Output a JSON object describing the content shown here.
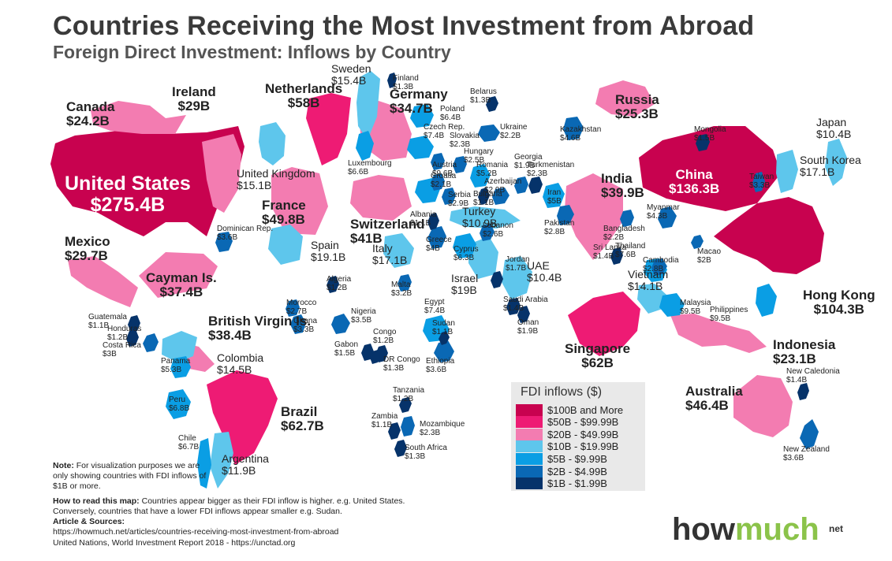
{
  "title": "Countries Receiving the Most Investment from Abroad",
  "subtitle": "Foreign Direct Investment: Inflows by Country",
  "colors": {
    "tier100": "#c8024f",
    "tier50": "#ee1b74",
    "tier20": "#f37cb1",
    "tier10": "#5ec6ec",
    "tier5": "#0a9ee4",
    "tier2": "#0a68b4",
    "tier1": "#06336a"
  },
  "legend": {
    "title": "FDI inflows ($)",
    "items": [
      {
        "label": "$100B and More",
        "color": "#c8024f"
      },
      {
        "label": "$50B - $99.99B",
        "color": "#ee1b74"
      },
      {
        "label": "$20B - $49.99B",
        "color": "#f37cb1"
      },
      {
        "label": "$10B - $19.99B",
        "color": "#5ec6ec"
      },
      {
        "label": "$5B - $9.99B",
        "color": "#0a9ee4"
      },
      {
        "label": "$2B - $4.99B",
        "color": "#0a68b4"
      },
      {
        "label": "$1B - $1.99B",
        "color": "#06336a"
      }
    ]
  },
  "countries": [
    {
      "key": "us",
      "name": "United States",
      "value": "$275.4B"
    },
    {
      "key": "china",
      "name": "China",
      "value": "$136.3B"
    },
    {
      "key": "hk",
      "name": "Hong Kong",
      "value": "$104.3B"
    },
    {
      "key": "brazil",
      "name": "Brazil",
      "value": "$62.7B"
    },
    {
      "key": "singapore",
      "name": "Singapore",
      "value": "$62B"
    },
    {
      "key": "netherlands",
      "name": "Netherlands",
      "value": "$58B"
    },
    {
      "key": "france",
      "name": "France",
      "value": "$49.8B"
    },
    {
      "key": "australia",
      "name": "Australia",
      "value": "$46.4B"
    },
    {
      "key": "switzerland",
      "name": "Switzerland",
      "value": "$41B"
    },
    {
      "key": "india",
      "name": "India",
      "value": "$39.9B"
    },
    {
      "key": "bvi",
      "name": "British Virgin Is.",
      "value": "$38.4B"
    },
    {
      "key": "cayman",
      "name": "Cayman Is.",
      "value": "$37.4B"
    },
    {
      "key": "germany",
      "name": "Germany",
      "value": "$34.7B"
    },
    {
      "key": "mexico",
      "name": "Mexico",
      "value": "$29.7B"
    },
    {
      "key": "ireland",
      "name": "Ireland",
      "value": "$29B"
    },
    {
      "key": "russia",
      "name": "Russia",
      "value": "$25.3B"
    },
    {
      "key": "canada",
      "name": "Canada",
      "value": "$24.2B"
    },
    {
      "key": "indonesia",
      "name": "Indonesia",
      "value": "$23.1B"
    },
    {
      "key": "spain",
      "name": "Spain",
      "value": "$19.1B"
    },
    {
      "key": "israel",
      "name": "Israel",
      "value": "$19B"
    },
    {
      "key": "italy",
      "name": "Italy",
      "value": "$17.1B"
    },
    {
      "key": "skorea",
      "name": "South Korea",
      "value": "$17.1B"
    },
    {
      "key": "sweden",
      "name": "Sweden",
      "value": "$15.4B"
    },
    {
      "key": "uk",
      "name": "United Kingdom",
      "value": "$15.1B"
    },
    {
      "key": "colombia",
      "name": "Colombia",
      "value": "$14.5B"
    },
    {
      "key": "vietnam",
      "name": "Vietnam",
      "value": "$14.1B"
    },
    {
      "key": "argentina",
      "name": "Argentina",
      "value": "$11.9B"
    },
    {
      "key": "turkey",
      "name": "Turkey",
      "value": "$10.9B"
    },
    {
      "key": "uae",
      "name": "UAE",
      "value": "$10.4B"
    },
    {
      "key": "japan",
      "name": "Japan",
      "value": "$10.4B"
    },
    {
      "key": "austria",
      "name": "Austria",
      "value": "$9.6B"
    },
    {
      "key": "malaysia",
      "name": "Malaysia",
      "value": "$9.5B"
    },
    {
      "key": "philippines",
      "name": "Philippines",
      "value": "$9.5B"
    },
    {
      "key": "egypt",
      "name": "Egypt",
      "value": "$7.4B"
    },
    {
      "key": "czech",
      "name": "Czech Rep.",
      "value": "$7.4B"
    },
    {
      "key": "thailand",
      "name": "Thailand",
      "value": "$7.6B"
    },
    {
      "key": "chile",
      "name": "Chile",
      "value": "$6.7B"
    },
    {
      "key": "peru",
      "name": "Peru",
      "value": "$6.8B"
    },
    {
      "key": "luxembourg",
      "name": "Luxembourg",
      "value": "$6.6B"
    },
    {
      "key": "poland",
      "name": "Poland",
      "value": "$6.4B"
    },
    {
      "key": "cyprus",
      "name": "Cyprus",
      "value": "$6.3B"
    },
    {
      "key": "panama",
      "name": "Panama",
      "value": "$5.3B"
    },
    {
      "key": "romania",
      "name": "Romania",
      "value": "$5.2B"
    },
    {
      "key": "iran",
      "name": "Iran",
      "value": "$5B"
    },
    {
      "key": "kazakhstan",
      "name": "Kazakhstan",
      "value": "$4.6B"
    },
    {
      "key": "myanmar",
      "name": "Myanmar",
      "value": "$4.3B"
    },
    {
      "key": "greece",
      "name": "Greece",
      "value": "$4B"
    },
    {
      "key": "dominican",
      "name": "Dominican Rep.",
      "value": "$3.6B"
    },
    {
      "key": "ethiopia",
      "name": "Ethiopia",
      "value": "$3.6B"
    },
    {
      "key": "newzealand",
      "name": "New Zealand",
      "value": "$3.6B"
    },
    {
      "key": "nigeria",
      "name": "Nigeria",
      "value": "$3.5B"
    },
    {
      "key": "taiwan",
      "name": "Taiwan",
      "value": "$3.3B"
    },
    {
      "key": "ghana",
      "name": "Ghana",
      "value": "$3.3B"
    },
    {
      "key": "malta",
      "name": "Malta",
      "value": "$3.2B"
    },
    {
      "key": "costarica",
      "name": "Costa Rica",
      "value": "$3B"
    },
    {
      "key": "azerbaijan",
      "name": "Azerbaijan",
      "value": "$2.9B"
    },
    {
      "key": "serbia",
      "name": "Serbia",
      "value": "$2.9B"
    },
    {
      "key": "pakistan",
      "name": "Pakistan",
      "value": "$2.8B"
    },
    {
      "key": "cambodia",
      "name": "Cambodia",
      "value": "$2.8B"
    },
    {
      "key": "morocco",
      "name": "Morocco",
      "value": "$2.7B"
    },
    {
      "key": "lebanon",
      "name": "Lebanon",
      "value": "$2.6B"
    },
    {
      "key": "hungary",
      "name": "Hungary",
      "value": "$2.5B"
    },
    {
      "key": "slovakia",
      "name": "Slovakia",
      "value": "$2.3B"
    },
    {
      "key": "turkmenistan",
      "name": "Turkmenistan",
      "value": "$2.3B"
    },
    {
      "key": "mozambique",
      "name": "Mozambique",
      "value": "$2.3B"
    },
    {
      "key": "ukraine",
      "name": "Ukraine",
      "value": "$2.2B"
    },
    {
      "key": "bangladesh",
      "name": "Bangladesh",
      "value": "$2.2B"
    },
    {
      "key": "croatia",
      "name": "Croatia",
      "value": "$2.1B"
    },
    {
      "key": "macao",
      "name": "Macao",
      "value": "$2B"
    },
    {
      "key": "oman",
      "name": "Oman",
      "value": "$1.9B"
    },
    {
      "key": "georgia",
      "name": "Georgia",
      "value": "$1.9B"
    },
    {
      "key": "jordan",
      "name": "Jordan",
      "value": "$1.7B"
    },
    {
      "key": "gabon",
      "name": "Gabon",
      "value": "$1.5B"
    },
    {
      "key": "mongolia",
      "name": "Mongolia",
      "value": "$1.5B"
    },
    {
      "key": "saudi",
      "name": "Saudi Arabia",
      "value": "$1.4B"
    },
    {
      "key": "srilanka",
      "name": "Sri Lanka",
      "value": "$1.4B"
    },
    {
      "key": "newcaledonia",
      "name": "New Caledonia",
      "value": "$1.4B"
    },
    {
      "key": "finland",
      "name": "Finland",
      "value": "$1.3B"
    },
    {
      "key": "belarus",
      "name": "Belarus",
      "value": "$1.3B"
    },
    {
      "key": "drcongo",
      "name": "DR Congo",
      "value": "$1.3B"
    },
    {
      "key": "southafrica",
      "name": "South Africa",
      "value": "$1.3B"
    },
    {
      "key": "algeria",
      "name": "Algeria",
      "value": "$1.2B"
    },
    {
      "key": "honduras",
      "name": "Honduras",
      "value": "$1.2B"
    },
    {
      "key": "congo",
      "name": "Congo",
      "value": "$1.2B"
    },
    {
      "key": "tanzania",
      "name": "Tanzania",
      "value": "$1.2B"
    },
    {
      "key": "guatemala",
      "name": "Guatemala",
      "value": "$1.1B"
    },
    {
      "key": "albania",
      "name": "Albania",
      "value": "$1.1B"
    },
    {
      "key": "bulgaria",
      "name": "Bulgaria",
      "value": "$1.1B"
    },
    {
      "key": "sudan",
      "name": "Sudan",
      "value": "$1.1B"
    },
    {
      "key": "zambia",
      "name": "Zambia",
      "value": "$1.1B"
    }
  ],
  "note": {
    "heading": "Note:",
    "text": " For visualization purposes we are only showing countries with FDI inflows of $1B or more."
  },
  "howto": {
    "heading": "How to read this map:",
    "text": " Countries appear bigger as their FDI inflow is higher. e.g. United States. Conversely, countries that have a lower FDI inflows appear smaller e.g. Sudan."
  },
  "sources": {
    "heading": "Article & Sources:",
    "line1": "https://howmuch.net/articles/countries-receiving-most-investment-from-abroad",
    "line2": "United Nations, World Investment Report 2018 - https://unctad.org"
  },
  "logo": {
    "part1": "how",
    "part2": "much",
    "suffix": "net"
  }
}
